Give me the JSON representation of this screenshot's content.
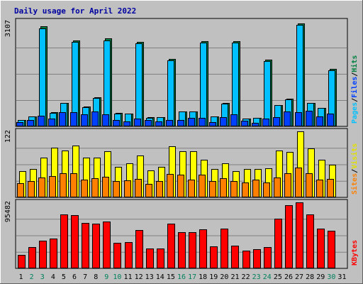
{
  "title": "Daily usage for April 2022",
  "chart_data": [
    {
      "type": "bar",
      "panel": "top",
      "categories": [
        "1",
        "2",
        "3",
        "4",
        "5",
        "6",
        "7",
        "8",
        "9",
        "10",
        "11",
        "12",
        "13",
        "14",
        "15",
        "16",
        "17",
        "18",
        "19",
        "20",
        "21",
        "22",
        "23",
        "24",
        "25",
        "26",
        "27",
        "28",
        "29",
        "30",
        "31"
      ],
      "ylim": [
        0,
        3107
      ],
      "y_max_label": "3107",
      "side_label": {
        "parts": [
          "Pages",
          "/",
          "Files",
          "/",
          "Hits"
        ]
      },
      "series": [
        {
          "name": "Hits",
          "color": "#008040",
          "values": [
            190,
            300,
            2950,
            410,
            700,
            2540,
            590,
            860,
            2600,
            400,
            380,
            2490,
            270,
            280,
            2000,
            450,
            450,
            2520,
            300,
            700,
            2520,
            240,
            260,
            1970,
            640,
            820,
            3050,
            700,
            550,
            1690,
            0
          ]
        },
        {
          "name": "Files",
          "color": "#00c0ff",
          "values": [
            180,
            290,
            2900,
            400,
            690,
            2490,
            570,
            840,
            2550,
            380,
            370,
            2450,
            260,
            270,
            1950,
            440,
            440,
            2480,
            290,
            680,
            2470,
            230,
            250,
            1930,
            620,
            800,
            3000,
            690,
            540,
            1650,
            0
          ]
        },
        {
          "name": "Pages",
          "color": "#0040ff",
          "values": [
            130,
            180,
            310,
            230,
            420,
            420,
            350,
            450,
            360,
            190,
            140,
            230,
            180,
            150,
            190,
            180,
            250,
            260,
            120,
            270,
            350,
            160,
            110,
            230,
            280,
            440,
            420,
            470,
            300,
            370,
            0
          ]
        }
      ]
    },
    {
      "type": "bar",
      "panel": "middle",
      "categories": [
        "1",
        "2",
        "3",
        "4",
        "5",
        "6",
        "7",
        "8",
        "9",
        "10",
        "11",
        "12",
        "13",
        "14",
        "15",
        "16",
        "17",
        "18",
        "19",
        "20",
        "21",
        "22",
        "23",
        "24",
        "25",
        "26",
        "27",
        "28",
        "29",
        "30",
        "31"
      ],
      "ylim": [
        0,
        122
      ],
      "y_max_label": "122",
      "side_label": {
        "parts": [
          "Sites",
          "/",
          "Visits"
        ]
      },
      "series": [
        {
          "name": "Visits",
          "color": "#ffff00",
          "values": [
            48,
            53,
            73,
            92,
            86,
            96,
            73,
            74,
            85,
            57,
            63,
            78,
            50,
            57,
            95,
            85,
            85,
            70,
            52,
            63,
            48,
            53,
            52,
            54,
            87,
            84,
            122,
            90,
            70,
            60,
            0
          ]
        },
        {
          "name": "Sites",
          "color": "#ff8000",
          "values": [
            26,
            30,
            37,
            40,
            45,
            45,
            33,
            36,
            38,
            30,
            32,
            34,
            25,
            30,
            43,
            42,
            33,
            42,
            30,
            36,
            30,
            27,
            33,
            28,
            37,
            45,
            55,
            44,
            33,
            34,
            0
          ]
        }
      ]
    },
    {
      "type": "bar",
      "panel": "bottom",
      "categories": [
        "1",
        "2",
        "3",
        "4",
        "5",
        "6",
        "7",
        "8",
        "9",
        "10",
        "11",
        "12",
        "13",
        "14",
        "15",
        "16",
        "17",
        "18",
        "19",
        "20",
        "21",
        "22",
        "23",
        "24",
        "25",
        "26",
        "27",
        "28",
        "29",
        "30",
        "31"
      ],
      "ylim": [
        0,
        95482
      ],
      "y_max_label": "95482",
      "side_label": {
        "parts": [
          "KBytes"
        ]
      },
      "series": [
        {
          "name": "KBytes",
          "color": "#ff0000",
          "values": [
            19000,
            31000,
            40000,
            43000,
            78000,
            77000,
            66000,
            65000,
            68000,
            37000,
            38000,
            55000,
            29000,
            29000,
            65000,
            52000,
            52000,
            56000,
            32000,
            57000,
            33000,
            26000,
            28000,
            31000,
            72000,
            91000,
            95482,
            78000,
            58000,
            54000,
            0
          ]
        }
      ]
    }
  ],
  "day_label_colors": {
    "weekday": "#000000",
    "weekend": "#00805c"
  },
  "weekend_days": [
    "2",
    "3",
    "9",
    "10",
    "16",
    "17",
    "23",
    "24",
    "30"
  ],
  "colors": {
    "background": "#c0c0c0",
    "panel": "#c0c0c0",
    "grid": "#808080",
    "title": "#0000a0",
    "label_pages": "#00c0ff",
    "label_files": "#0040ff",
    "label_hits": "#008040",
    "label_sites": "#ff8000",
    "label_visits": "#e0e000",
    "label_kbytes": "#ff0000"
  }
}
